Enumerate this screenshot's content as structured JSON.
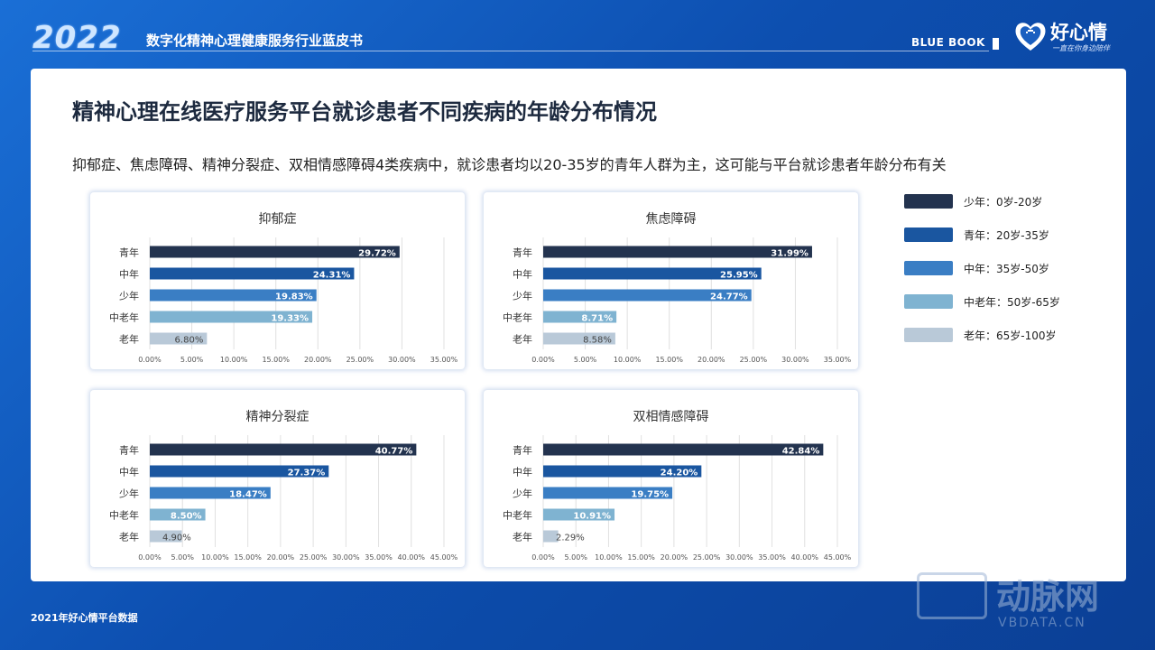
{
  "header": {
    "year": "2022",
    "report_title": "数字化精神心理健康服务行业蓝皮书",
    "bluebook": "BLUE BOOK",
    "logo_text": "好心情",
    "logo_sub": "一直在你身边陪伴"
  },
  "main": {
    "title": "精神心理在线医疗服务平台就诊患者不同疾病的年龄分布情况",
    "subtitle": "抑郁症、焦虑障碍、精神分裂症、双相情感障碍4类疾病中，就诊患者均以20-35岁的青年人群为主，这可能与平台就诊患者年龄分布有关"
  },
  "legend": [
    {
      "label": "少年：0岁-20岁",
      "color": "#23334f"
    },
    {
      "label": "青年：20岁-35岁",
      "color": "#1a56a0"
    },
    {
      "label": "中年：35岁-50岁",
      "color": "#3a7ec4"
    },
    {
      "label": "中老年：50岁-65岁",
      "color": "#7fb3d1"
    },
    {
      "label": "老年：65岁-100岁",
      "color": "#b9c9d8"
    }
  ],
  "footer": {
    "source": "2021年好心情平台数据"
  },
  "watermark": {
    "text": "动脉网",
    "sub": "VBDATA.CN"
  },
  "chart_data": [
    {
      "type": "bar",
      "orientation": "horizontal",
      "title": "抑郁症",
      "categories": [
        "青年",
        "中年",
        "少年",
        "中老年",
        "老年"
      ],
      "values": [
        29.72,
        24.31,
        19.83,
        19.33,
        6.8
      ],
      "labels": [
        "29.72%",
        "24.31%",
        "19.83%",
        "19.33%",
        "6.80%"
      ],
      "colors": [
        "#23334f",
        "#1a56a0",
        "#3a7ec4",
        "#7fb3d1",
        "#b9c9d8"
      ],
      "xlim": [
        0,
        35
      ],
      "ticks": [
        "0.00%",
        "5.00%",
        "10.00%",
        "15.00%",
        "20.00%",
        "25.00%",
        "30.00%",
        "35.00%"
      ]
    },
    {
      "type": "bar",
      "orientation": "horizontal",
      "title": "焦虑障碍",
      "categories": [
        "青年",
        "中年",
        "少年",
        "中老年",
        "老年"
      ],
      "values": [
        31.99,
        25.95,
        24.77,
        8.71,
        8.58
      ],
      "labels": [
        "31.99%",
        "25.95%",
        "24.77%",
        "8.71%",
        "8.58%"
      ],
      "colors": [
        "#23334f",
        "#1a56a0",
        "#3a7ec4",
        "#7fb3d1",
        "#b9c9d8"
      ],
      "xlim": [
        0,
        35
      ],
      "ticks": [
        "0.00%",
        "5.00%",
        "10.00%",
        "15.00%",
        "20.00%",
        "25.00%",
        "30.00%",
        "35.00%"
      ]
    },
    {
      "type": "bar",
      "orientation": "horizontal",
      "title": "精神分裂症",
      "categories": [
        "青年",
        "中年",
        "少年",
        "中老年",
        "老年"
      ],
      "values": [
        40.77,
        27.37,
        18.47,
        8.5,
        4.9
      ],
      "labels": [
        "40.77%",
        "27.37%",
        "18.47%",
        "8.50%",
        "4.90%"
      ],
      "colors": [
        "#23334f",
        "#1a56a0",
        "#3a7ec4",
        "#7fb3d1",
        "#b9c9d8"
      ],
      "xlim": [
        0,
        45
      ],
      "ticks": [
        "0.00%",
        "5.00%",
        "10.00%",
        "15.00%",
        "20.00%",
        "25.00%",
        "30.00%",
        "35.00%",
        "40.00%",
        "45.00%"
      ]
    },
    {
      "type": "bar",
      "orientation": "horizontal",
      "title": "双相情感障碍",
      "categories": [
        "青年",
        "中年",
        "少年",
        "中老年",
        "老年"
      ],
      "values": [
        42.84,
        24.2,
        19.75,
        10.91,
        2.29
      ],
      "labels": [
        "42.84%",
        "24.20%",
        "19.75%",
        "10.91%",
        "2.29%"
      ],
      "colors": [
        "#23334f",
        "#1a56a0",
        "#3a7ec4",
        "#7fb3d1",
        "#b9c9d8"
      ],
      "xlim": [
        0,
        45
      ],
      "ticks": [
        "0.00%",
        "5.00%",
        "10.00%",
        "15.00%",
        "20.00%",
        "25.00%",
        "30.00%",
        "35.00%",
        "40.00%",
        "45.00%"
      ]
    }
  ]
}
